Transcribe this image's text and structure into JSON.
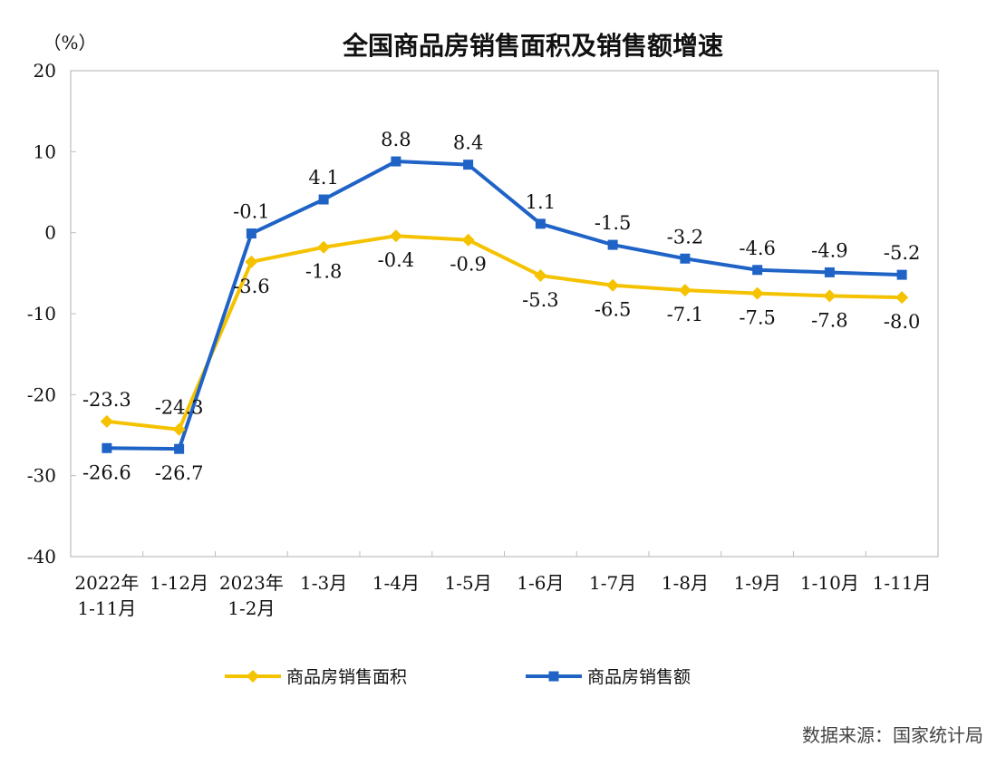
{
  "chart_data": {
    "type": "line",
    "title": "全国商品房销售面积及销售额增速",
    "y_unit_label": "（%）",
    "ylim": [
      -40,
      20
    ],
    "yticks": [
      20,
      10,
      0,
      -10,
      -20,
      -30,
      -40
    ],
    "categories": [
      [
        "2022年",
        "1-11月"
      ],
      [
        "1-12月"
      ],
      [
        "2023年",
        "1-2月"
      ],
      [
        "1-3月"
      ],
      [
        "1-4月"
      ],
      [
        "1-5月"
      ],
      [
        "1-6月"
      ],
      [
        "1-7月"
      ],
      [
        "1-8月"
      ],
      [
        "1-9月"
      ],
      [
        "1-10月"
      ],
      [
        "1-11月"
      ]
    ],
    "series": [
      {
        "name": "商品房销售面积",
        "color": "#F5C200",
        "marker": "diamond",
        "values": [
          -23.3,
          -24.3,
          -3.6,
          -1.8,
          -0.4,
          -0.9,
          -5.3,
          -6.5,
          -7.1,
          -7.5,
          -7.8,
          -8.0
        ],
        "labels": [
          "-23.3",
          "-24.3",
          "-3.6",
          "-1.8",
          "-0.4",
          "-0.9",
          "-5.3",
          "-6.5",
          "-7.1",
          "-7.5",
          "-7.8",
          "-8.0"
        ]
      },
      {
        "name": "商品房销售额",
        "color": "#1F63C7",
        "marker": "square",
        "values": [
          -26.6,
          -26.7,
          -0.1,
          4.1,
          8.8,
          8.4,
          1.1,
          -1.5,
          -3.2,
          -4.6,
          -4.9,
          -5.2
        ],
        "labels": [
          "-26.6",
          "-26.7",
          "-0.1",
          "4.1",
          "8.8",
          "8.4",
          "1.1",
          "-1.5",
          "-3.2",
          "-4.6",
          "-4.9",
          "-5.2"
        ]
      }
    ],
    "grid": false,
    "legend_position": "bottom"
  },
  "source_note": "数据来源：国家统计局"
}
